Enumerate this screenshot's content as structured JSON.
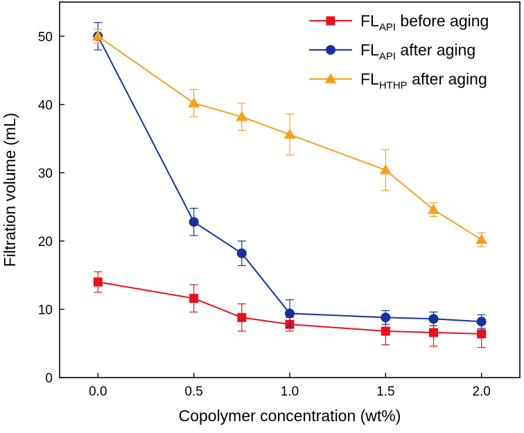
{
  "chart_data": {
    "type": "line",
    "xlabel": "Copolymer concentration (wt%)",
    "ylabel": "Filtration volume (mL)",
    "xlim": [
      -0.2,
      2.2
    ],
    "ylim": [
      0,
      55
    ],
    "x_ticks": [
      0.0,
      0.5,
      1.0,
      1.5,
      2.0
    ],
    "x_tick_labels": [
      "0.0",
      "0.5",
      "1.0",
      "1.5",
      "2.0"
    ],
    "y_ticks": [
      0,
      10,
      20,
      30,
      40,
      50
    ],
    "y_tick_labels": [
      "0",
      "10",
      "20",
      "30",
      "40",
      "50"
    ],
    "legend_position": "top-right",
    "series": [
      {
        "name": "FL_API before aging",
        "legend_main": "FL",
        "legend_sub": "API",
        "legend_rest": " before aging",
        "color": "#e8101a",
        "marker": "square",
        "x": [
          0.0,
          0.5,
          0.75,
          1.0,
          1.5,
          1.75,
          2.0
        ],
        "y": [
          14.0,
          11.6,
          8.8,
          7.8,
          6.8,
          6.6,
          6.4
        ],
        "err": [
          1.5,
          2.0,
          2.0,
          1.0,
          2.0,
          2.0,
          2.0
        ]
      },
      {
        "name": "FL_API after aging",
        "legend_main": "FL",
        "legend_sub": "API",
        "legend_rest": " after aging",
        "color": "#1530a0",
        "marker": "circle",
        "x": [
          0.0,
          0.5,
          0.75,
          1.0,
          1.5,
          1.75,
          2.0
        ],
        "y": [
          50.0,
          22.8,
          18.2,
          9.4,
          8.8,
          8.6,
          8.2
        ],
        "err": [
          2.0,
          2.0,
          1.8,
          2.0,
          1.0,
          1.0,
          1.0
        ]
      },
      {
        "name": "FL_HTHP after aging",
        "legend_main": "FL",
        "legend_sub": "HTHP",
        "legend_rest": " after aging",
        "color": "#f5a01a",
        "marker": "triangle",
        "x": [
          0.0,
          0.5,
          0.75,
          1.0,
          1.5,
          1.75,
          2.0
        ],
        "y": [
          50.0,
          40.2,
          38.2,
          35.6,
          30.4,
          24.6,
          20.2
        ],
        "err": [
          1.0,
          2.0,
          2.0,
          3.0,
          3.0,
          1.0,
          1.0
        ]
      }
    ]
  }
}
